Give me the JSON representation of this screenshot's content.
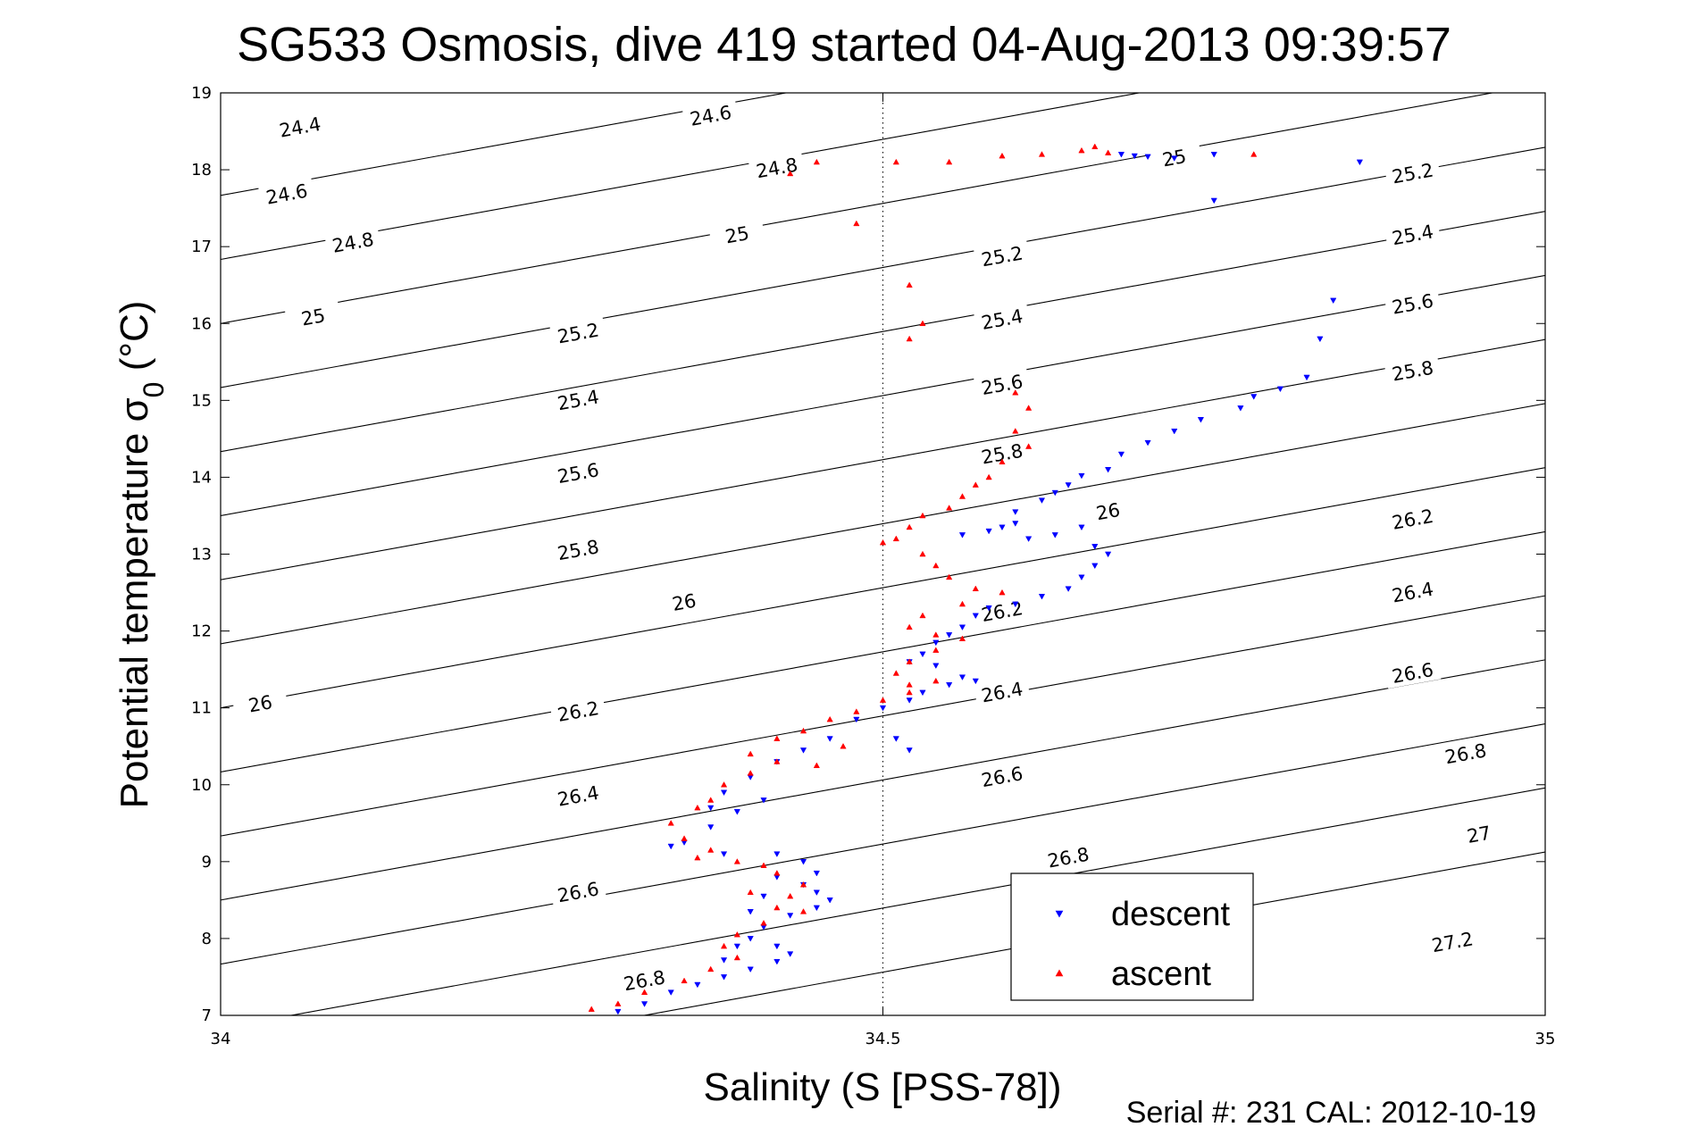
{
  "chart_data": {
    "type": "scatter",
    "title": "SG533 Osmosis, dive 419 started 04-Aug-2013 09:39:57",
    "xlabel": "Salinity (S [PSS-78])",
    "ylabel": "Potential temperature σ",
    "ylabel_sub": "0",
    "ylabel_unit": " (°C)",
    "footer": "Serial #: 231  CAL: 2012-10-19",
    "xlim": [
      34,
      35
    ],
    "ylim": [
      7,
      19
    ],
    "xticks": [
      "34",
      "34.5",
      "35"
    ],
    "yticks": [
      "7",
      "8",
      "9",
      "10",
      "11",
      "12",
      "13",
      "14",
      "15",
      "16",
      "17",
      "18",
      "19"
    ],
    "xtick_values": [
      34,
      34.5,
      35
    ],
    "ytick_values": [
      7,
      8,
      9,
      10,
      11,
      12,
      13,
      14,
      15,
      16,
      17,
      18,
      19
    ],
    "grid": "dotted at x = 34.5",
    "legend_position": "bottom-right",
    "contours": {
      "quantity": "sigma-theta",
      "levels": [
        24.4,
        24.6,
        24.8,
        25,
        25.2,
        25.4,
        25.6,
        25.8,
        26,
        26.2,
        26.4,
        26.6,
        26.8,
        27,
        27.2
      ],
      "label_text": [
        "24.4",
        "24.6",
        "24.8",
        "25",
        "25.2",
        "25.4",
        "25.6",
        "25.8",
        "26",
        "26.2",
        "26.4",
        "26.6",
        "26.8",
        "27",
        "27.2"
      ],
      "labels": [
        {
          "text": "24.4",
          "x": 34.06,
          "y": 18.55
        },
        {
          "text": "24.6",
          "x": 34.05,
          "y": 17.68
        },
        {
          "text": "24.8",
          "x": 34.1,
          "y": 17.05
        },
        {
          "text": "25",
          "x": 34.07,
          "y": 16.08
        },
        {
          "text": "25.2",
          "x": 34.27,
          "y": 15.87
        },
        {
          "text": "25.4",
          "x": 34.27,
          "y": 15.0
        },
        {
          "text": "25.6",
          "x": 34.27,
          "y": 14.05
        },
        {
          "text": "25.8",
          "x": 34.27,
          "y": 13.05
        },
        {
          "text": "26",
          "x": 34.35,
          "y": 12.37
        },
        {
          "text": "26.2",
          "x": 34.27,
          "y": 10.95
        },
        {
          "text": "26.4",
          "x": 34.27,
          "y": 9.85
        },
        {
          "text": "26.6",
          "x": 34.27,
          "y": 8.6
        },
        {
          "text": "26.8",
          "x": 34.32,
          "y": 7.45
        },
        {
          "text": "26",
          "x": 34.03,
          "y": 11.05
        },
        {
          "text": "24.6",
          "x": 34.37,
          "y": 18.7
        },
        {
          "text": "24.8",
          "x": 34.42,
          "y": 18.02
        },
        {
          "text": "25",
          "x": 34.39,
          "y": 17.15
        },
        {
          "text": "25.2",
          "x": 34.59,
          "y": 16.87
        },
        {
          "text": "25.4",
          "x": 34.59,
          "y": 16.05
        },
        {
          "text": "25.6",
          "x": 34.59,
          "y": 15.2
        },
        {
          "text": "25.8",
          "x": 34.59,
          "y": 14.3
        },
        {
          "text": "26",
          "x": 34.67,
          "y": 13.55
        },
        {
          "text": "26.2",
          "x": 34.59,
          "y": 12.25
        },
        {
          "text": "26.4",
          "x": 34.59,
          "y": 11.2
        },
        {
          "text": "26.6",
          "x": 34.59,
          "y": 10.1
        },
        {
          "text": "26.8",
          "x": 34.64,
          "y": 9.05
        },
        {
          "text": "25",
          "x": 34.72,
          "y": 18.15
        },
        {
          "text": "25.2",
          "x": 34.9,
          "y": 17.95
        },
        {
          "text": "25.4",
          "x": 34.9,
          "y": 17.15
        },
        {
          "text": "25.6",
          "x": 34.9,
          "y": 16.25
        },
        {
          "text": "25.8",
          "x": 34.9,
          "y": 15.38
        },
        {
          "text": "26.2",
          "x": 34.9,
          "y": 13.45
        },
        {
          "text": "26.4",
          "x": 34.9,
          "y": 12.5
        },
        {
          "text": "26.6",
          "x": 34.9,
          "y": 11.45
        },
        {
          "text": "26.8",
          "x": 34.94,
          "y": 10.4
        },
        {
          "text": "27",
          "x": 34.95,
          "y": 9.35
        },
        {
          "text": "27.2",
          "x": 34.93,
          "y": 7.95
        }
      ]
    },
    "series": [
      {
        "name": "descent",
        "color": "#0000ff",
        "marker": "triangle-down",
        "points": [
          [
            34.86,
            18.1
          ],
          [
            34.75,
            18.2
          ],
          [
            34.72,
            18.15
          ],
          [
            34.68,
            18.2
          ],
          [
            34.69,
            18.18
          ],
          [
            34.7,
            18.17
          ],
          [
            34.75,
            17.6
          ],
          [
            34.84,
            16.3
          ],
          [
            34.83,
            15.8
          ],
          [
            34.82,
            15.3
          ],
          [
            34.78,
            15.05
          ],
          [
            34.8,
            15.15
          ],
          [
            34.77,
            14.9
          ],
          [
            34.74,
            14.75
          ],
          [
            34.72,
            14.6
          ],
          [
            34.7,
            14.45
          ],
          [
            34.68,
            14.3
          ],
          [
            34.67,
            14.1
          ],
          [
            34.65,
            14.02
          ],
          [
            34.64,
            13.9
          ],
          [
            34.63,
            13.8
          ],
          [
            34.62,
            13.7
          ],
          [
            34.6,
            13.55
          ],
          [
            34.6,
            13.4
          ],
          [
            34.59,
            13.35
          ],
          [
            34.58,
            13.3
          ],
          [
            34.56,
            13.25
          ],
          [
            34.61,
            13.2
          ],
          [
            34.63,
            13.25
          ],
          [
            34.65,
            13.35
          ],
          [
            34.66,
            13.1
          ],
          [
            34.67,
            13.0
          ],
          [
            34.66,
            12.85
          ],
          [
            34.65,
            12.7
          ],
          [
            34.64,
            12.55
          ],
          [
            34.62,
            12.45
          ],
          [
            34.6,
            12.35
          ],
          [
            34.58,
            12.3
          ],
          [
            34.57,
            12.2
          ],
          [
            34.56,
            12.05
          ],
          [
            34.55,
            11.95
          ],
          [
            34.54,
            11.85
          ],
          [
            34.53,
            11.7
          ],
          [
            34.52,
            11.6
          ],
          [
            34.54,
            11.55
          ],
          [
            34.56,
            11.4
          ],
          [
            34.57,
            11.35
          ],
          [
            34.55,
            11.3
          ],
          [
            34.53,
            11.2
          ],
          [
            34.52,
            11.1
          ],
          [
            34.5,
            11.0
          ],
          [
            34.48,
            10.85
          ],
          [
            34.51,
            10.6
          ],
          [
            34.52,
            10.45
          ],
          [
            34.46,
            10.6
          ],
          [
            34.44,
            10.45
          ],
          [
            34.42,
            10.3
          ],
          [
            34.4,
            10.1
          ],
          [
            34.38,
            9.9
          ],
          [
            34.37,
            9.7
          ],
          [
            34.39,
            9.65
          ],
          [
            34.41,
            9.8
          ],
          [
            34.37,
            9.45
          ],
          [
            34.35,
            9.25
          ],
          [
            34.34,
            9.2
          ],
          [
            34.38,
            9.1
          ],
          [
            34.42,
            9.1
          ],
          [
            34.44,
            9.0
          ],
          [
            34.45,
            8.85
          ],
          [
            34.44,
            8.7
          ],
          [
            34.45,
            8.6
          ],
          [
            34.46,
            8.5
          ],
          [
            34.45,
            8.4
          ],
          [
            34.43,
            8.3
          ],
          [
            34.41,
            8.15
          ],
          [
            34.4,
            8.0
          ],
          [
            34.42,
            7.9
          ],
          [
            34.43,
            7.8
          ],
          [
            34.42,
            7.7
          ],
          [
            34.4,
            7.6
          ],
          [
            34.38,
            7.5
          ],
          [
            34.36,
            7.4
          ],
          [
            34.34,
            7.3
          ],
          [
            34.32,
            7.15
          ],
          [
            34.3,
            7.05
          ],
          [
            34.38,
            7.72
          ],
          [
            34.39,
            7.9
          ],
          [
            34.4,
            8.35
          ],
          [
            34.41,
            8.55
          ],
          [
            34.42,
            8.8
          ]
        ]
      },
      {
        "name": "ascent",
        "color": "#ff0000",
        "marker": "triangle-up",
        "points": [
          [
            34.43,
            17.95
          ],
          [
            34.45,
            18.1
          ],
          [
            34.51,
            18.1
          ],
          [
            34.55,
            18.1
          ],
          [
            34.59,
            18.18
          ],
          [
            34.62,
            18.2
          ],
          [
            34.65,
            18.25
          ],
          [
            34.66,
            18.3
          ],
          [
            34.67,
            18.22
          ],
          [
            34.78,
            18.2
          ],
          [
            34.48,
            17.3
          ],
          [
            34.52,
            16.5
          ],
          [
            34.53,
            16.0
          ],
          [
            34.52,
            15.8
          ],
          [
            34.6,
            15.1
          ],
          [
            34.61,
            14.9
          ],
          [
            34.6,
            14.6
          ],
          [
            34.61,
            14.4
          ],
          [
            34.59,
            14.2
          ],
          [
            34.58,
            14.0
          ],
          [
            34.57,
            13.9
          ],
          [
            34.56,
            13.75
          ],
          [
            34.55,
            13.6
          ],
          [
            34.53,
            13.5
          ],
          [
            34.52,
            13.35
          ],
          [
            34.51,
            13.2
          ],
          [
            34.5,
            13.15
          ],
          [
            34.53,
            13.0
          ],
          [
            34.54,
            12.85
          ],
          [
            34.55,
            12.7
          ],
          [
            34.57,
            12.55
          ],
          [
            34.59,
            12.5
          ],
          [
            34.56,
            12.35
          ],
          [
            34.53,
            12.2
          ],
          [
            34.52,
            12.05
          ],
          [
            34.54,
            11.95
          ],
          [
            34.56,
            11.9
          ],
          [
            34.54,
            11.75
          ],
          [
            34.52,
            11.6
          ],
          [
            34.51,
            11.45
          ],
          [
            34.52,
            11.3
          ],
          [
            34.54,
            11.35
          ],
          [
            34.52,
            11.2
          ],
          [
            34.5,
            11.1
          ],
          [
            34.48,
            10.95
          ],
          [
            34.46,
            10.85
          ],
          [
            34.44,
            10.7
          ],
          [
            34.42,
            10.6
          ],
          [
            34.4,
            10.4
          ],
          [
            34.42,
            10.3
          ],
          [
            34.4,
            10.15
          ],
          [
            34.38,
            10.0
          ],
          [
            34.37,
            9.8
          ],
          [
            34.36,
            9.7
          ],
          [
            34.34,
            9.5
          ],
          [
            34.35,
            9.3
          ],
          [
            34.37,
            9.15
          ],
          [
            34.39,
            9.0
          ],
          [
            34.42,
            8.85
          ],
          [
            34.44,
            8.7
          ],
          [
            34.43,
            8.55
          ],
          [
            34.42,
            8.4
          ],
          [
            34.44,
            8.35
          ],
          [
            34.41,
            8.2
          ],
          [
            34.39,
            8.05
          ],
          [
            34.38,
            7.9
          ],
          [
            34.39,
            7.75
          ],
          [
            34.37,
            7.6
          ],
          [
            34.35,
            7.45
          ],
          [
            34.32,
            7.3
          ],
          [
            34.3,
            7.15
          ],
          [
            34.28,
            7.08
          ],
          [
            34.4,
            8.6
          ],
          [
            34.41,
            8.95
          ],
          [
            34.36,
            9.05
          ],
          [
            34.45,
            10.25
          ],
          [
            34.47,
            10.5
          ]
        ]
      }
    ]
  }
}
